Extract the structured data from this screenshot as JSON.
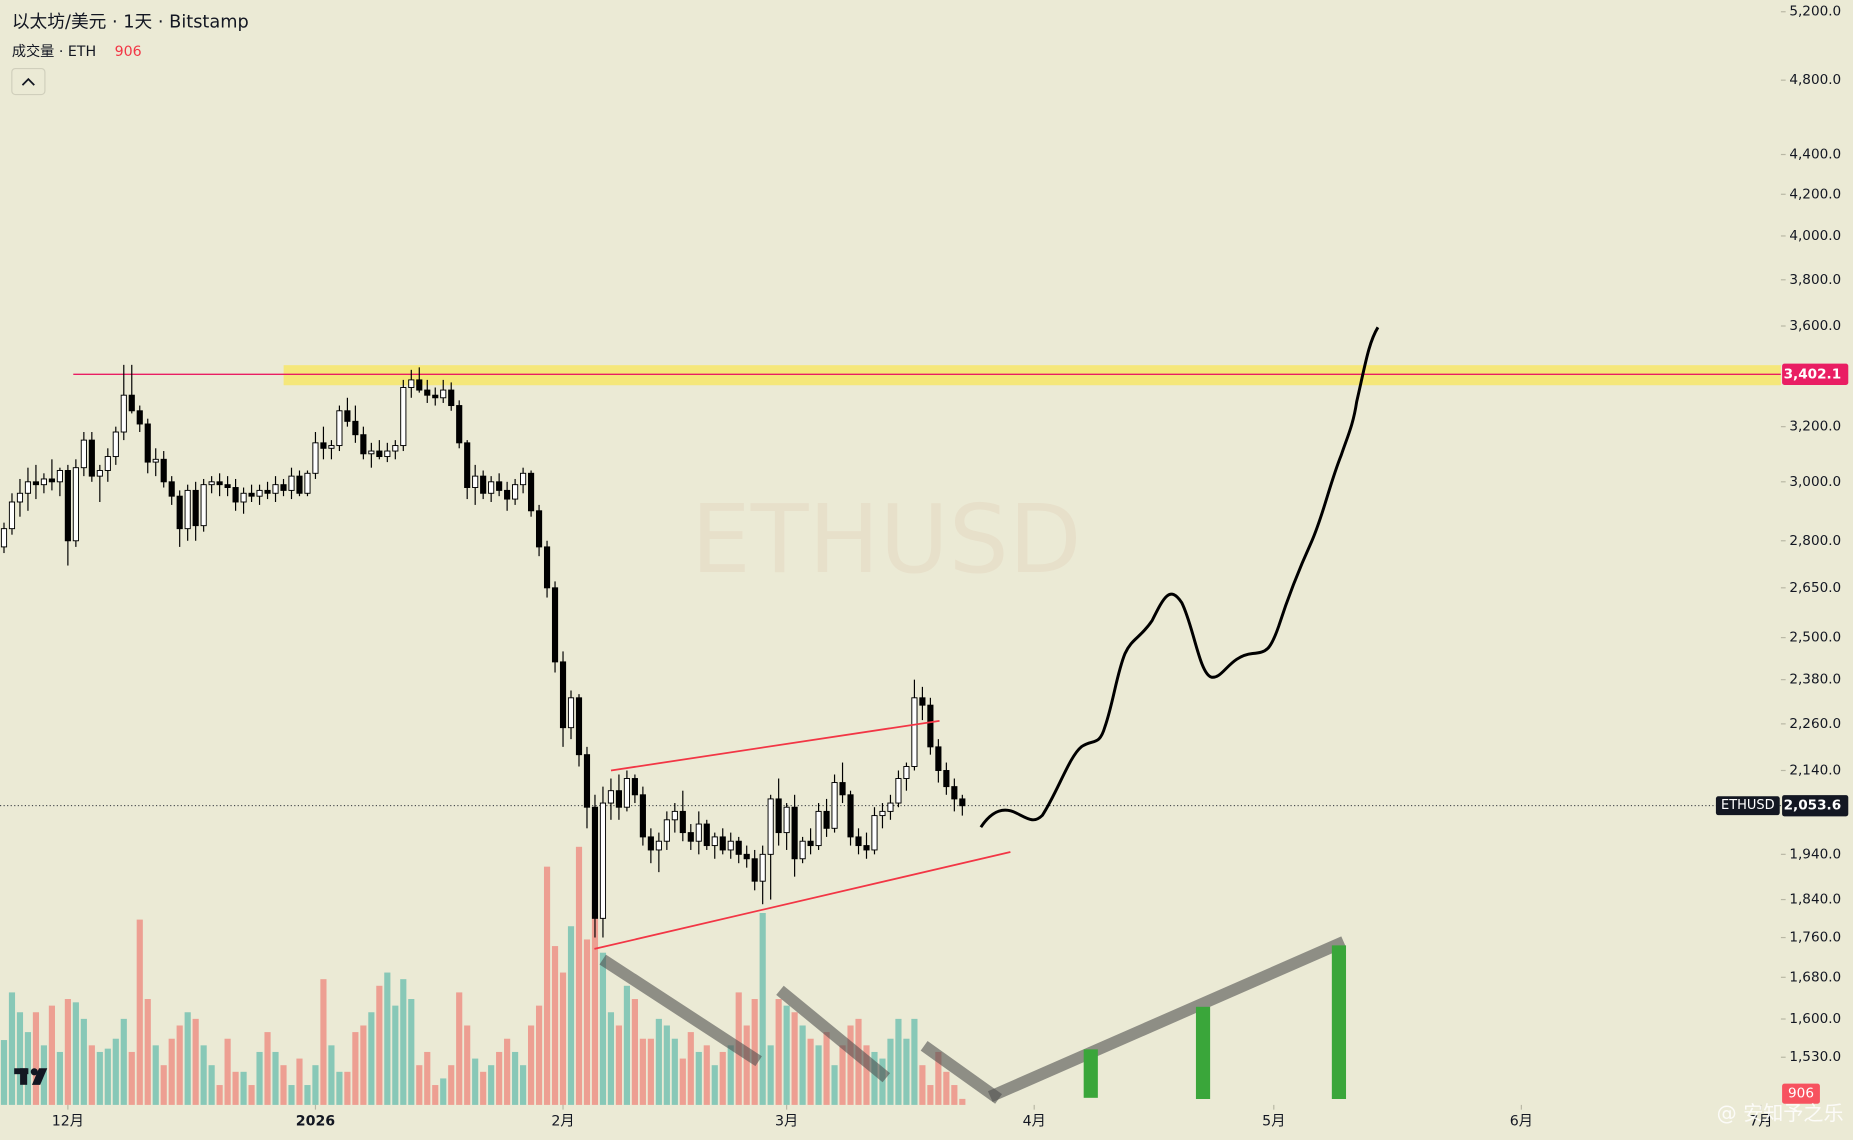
{
  "chart_data": {
    "type": "candlestick",
    "title": "以太坊/美元 · 1天 · Bitstamp",
    "volume_title": "成交量 · ETH",
    "watermark": "ETHUSD",
    "credit": "@ 安知予之乐",
    "log_scale": true,
    "up_color": "#ffffff",
    "down_color": "#000000",
    "wick_color": "#000000",
    "volume_up_color": "#26a69a",
    "volume_down_color": "#ef5350",
    "ylim": [
      1447,
      5272
    ],
    "yticks": [
      {
        "value": 5200,
        "label": "5,200.0"
      },
      {
        "value": 4800,
        "label": "4,800.0"
      },
      {
        "value": 4400,
        "label": "4,400.0"
      },
      {
        "value": 4200,
        "label": "4,200.0"
      },
      {
        "value": 4000,
        "label": "4,000.0"
      },
      {
        "value": 3800,
        "label": "3,800.0"
      },
      {
        "value": 3600,
        "label": "3,600.0"
      },
      {
        "value": 3200,
        "label": "3,200.0"
      },
      {
        "value": 3000,
        "label": "3,000.0"
      },
      {
        "value": 2800,
        "label": "2,800.0"
      },
      {
        "value": 2650,
        "label": "2,650.0"
      },
      {
        "value": 2500,
        "label": "2,500.0"
      },
      {
        "value": 2380,
        "label": "2,380.0"
      },
      {
        "value": 2260,
        "label": "2,260.0"
      },
      {
        "value": 2140,
        "label": "2,140.0"
      },
      {
        "value": 1940,
        "label": "1,940.0"
      },
      {
        "value": 1840,
        "label": "1,840.0"
      },
      {
        "value": 1760,
        "label": "1,760.0"
      },
      {
        "value": 1680,
        "label": "1,680.0"
      },
      {
        "value": 1600,
        "label": "1,600.0"
      },
      {
        "value": 1530,
        "label": "1,530.0"
      }
    ],
    "xlim": [
      -0.5,
      222.5
    ],
    "xticks": [
      {
        "value": 8,
        "label": "12月"
      },
      {
        "value": 39,
        "label": "2026"
      },
      {
        "value": 70,
        "label": "2月"
      },
      {
        "value": 98,
        "label": "3月"
      },
      {
        "value": 129,
        "label": "4月"
      },
      {
        "value": 159,
        "label": "5月"
      },
      {
        "value": 190,
        "label": "6月"
      },
      {
        "value": 220,
        "label": "7月"
      }
    ],
    "resistance": {
      "value": 3402.1,
      "label": "3,402.1",
      "color": "#e91e63"
    },
    "last_price": {
      "value": 2053.6,
      "label": "2,053.6",
      "symbol": "ETHUSD"
    },
    "volume_ylim": [
      0,
      50000
    ],
    "candles": [
      [
        2780,
        2860,
        2760,
        2840
      ],
      [
        2840,
        2960,
        2820,
        2930
      ],
      [
        2930,
        3010,
        2880,
        2960
      ],
      [
        2960,
        3050,
        2900,
        3000
      ],
      [
        3000,
        3060,
        2940,
        2990
      ],
      [
        2990,
        3030,
        2960,
        3010
      ],
      [
        3010,
        3080,
        2970,
        3000
      ],
      [
        3000,
        3050,
        2950,
        3040
      ],
      [
        3040,
        3060,
        2720,
        2800
      ],
      [
        2800,
        3080,
        2780,
        3050
      ],
      [
        3050,
        3180,
        3020,
        3150
      ],
      [
        3150,
        3180,
        3000,
        3020
      ],
      [
        3020,
        3060,
        2930,
        3040
      ],
      [
        3040,
        3120,
        3000,
        3090
      ],
      [
        3090,
        3200,
        3060,
        3180
      ],
      [
        3180,
        3440,
        3150,
        3320
      ],
      [
        3320,
        3440,
        3250,
        3260
      ],
      [
        3260,
        3280,
        3180,
        3210
      ],
      [
        3210,
        3230,
        3030,
        3070
      ],
      [
        3070,
        3120,
        3020,
        3080
      ],
      [
        3080,
        3110,
        2980,
        3000
      ],
      [
        3000,
        3020,
        2920,
        2950
      ],
      [
        2950,
        2970,
        2780,
        2840
      ],
      [
        2840,
        2990,
        2800,
        2970
      ],
      [
        2970,
        3000,
        2800,
        2850
      ],
      [
        2850,
        3010,
        2830,
        2990
      ],
      [
        2990,
        3020,
        2960,
        3000
      ],
      [
        3000,
        3030,
        2950,
        2990
      ],
      [
        2990,
        3020,
        2950,
        2980
      ],
      [
        2980,
        3010,
        2900,
        2930
      ],
      [
        2930,
        2980,
        2890,
        2960
      ],
      [
        2960,
        2990,
        2930,
        2950
      ],
      [
        2950,
        2990,
        2920,
        2970
      ],
      [
        2970,
        3000,
        2940,
        2960
      ],
      [
        2960,
        3020,
        2930,
        2990
      ],
      [
        2990,
        3010,
        2950,
        2970
      ],
      [
        2970,
        3050,
        2940,
        3020
      ],
      [
        3020,
        3040,
        2950,
        2960
      ],
      [
        2960,
        3040,
        2950,
        3030
      ],
      [
        3030,
        3180,
        3010,
        3140
      ],
      [
        3140,
        3200,
        3080,
        3120
      ],
      [
        3120,
        3150,
        3080,
        3130
      ],
      [
        3130,
        3280,
        3110,
        3260
      ],
      [
        3260,
        3310,
        3200,
        3220
      ],
      [
        3220,
        3280,
        3140,
        3170
      ],
      [
        3170,
        3200,
        3080,
        3100
      ],
      [
        3100,
        3140,
        3050,
        3110
      ],
      [
        3110,
        3150,
        3080,
        3090
      ],
      [
        3090,
        3140,
        3070,
        3110
      ],
      [
        3110,
        3150,
        3080,
        3130
      ],
      [
        3130,
        3380,
        3110,
        3350
      ],
      [
        3350,
        3420,
        3310,
        3380
      ],
      [
        3380,
        3430,
        3330,
        3340
      ],
      [
        3340,
        3380,
        3290,
        3320
      ],
      [
        3320,
        3350,
        3280,
        3310
      ],
      [
        3310,
        3380,
        3290,
        3340
      ],
      [
        3340,
        3370,
        3260,
        3280
      ],
      [
        3280,
        3300,
        3120,
        3140
      ],
      [
        3140,
        3150,
        2940,
        2980
      ],
      [
        2980,
        3060,
        2920,
        3020
      ],
      [
        3020,
        3040,
        2940,
        2960
      ],
      [
        2960,
        3020,
        2930,
        3000
      ],
      [
        3000,
        3030,
        2950,
        2970
      ],
      [
        2970,
        3000,
        2900,
        2940
      ],
      [
        2940,
        3010,
        2920,
        2990
      ],
      [
        2990,
        3050,
        2960,
        3030
      ],
      [
        3030,
        3040,
        2880,
        2900
      ],
      [
        2900,
        2920,
        2750,
        2780
      ],
      [
        2780,
        2800,
        2620,
        2650
      ],
      [
        2650,
        2670,
        2400,
        2430
      ],
      [
        2430,
        2460,
        2200,
        2250
      ],
      [
        2250,
        2350,
        2220,
        2330
      ],
      [
        2330,
        2340,
        2150,
        2180
      ],
      [
        2180,
        2200,
        2000,
        2050
      ],
      [
        2050,
        2080,
        1760,
        1800
      ],
      [
        1800,
        2100,
        1760,
        2060
      ],
      [
        2060,
        2120,
        2020,
        2090
      ],
      [
        2090,
        2130,
        2020,
        2050
      ],
      [
        2050,
        2140,
        2040,
        2120
      ],
      [
        2120,
        2130,
        2060,
        2080
      ],
      [
        2080,
        2100,
        1960,
        1980
      ],
      [
        1980,
        2000,
        1920,
        1950
      ],
      [
        1950,
        1990,
        1900,
        1970
      ],
      [
        1970,
        2040,
        1950,
        2020
      ],
      [
        2020,
        2060,
        1990,
        2040
      ],
      [
        2040,
        2090,
        1970,
        1990
      ],
      [
        1990,
        2010,
        1950,
        1970
      ],
      [
        1970,
        2040,
        1940,
        2010
      ],
      [
        2010,
        2020,
        1950,
        1960
      ],
      [
        1960,
        1990,
        1930,
        1980
      ],
      [
        1980,
        2000,
        1940,
        1950
      ],
      [
        1950,
        1990,
        1930,
        1970
      ],
      [
        1970,
        1980,
        1920,
        1940
      ],
      [
        1940,
        1960,
        1910,
        1930
      ],
      [
        1930,
        1950,
        1860,
        1880
      ],
      [
        1880,
        1960,
        1830,
        1940
      ],
      [
        1940,
        2080,
        1840,
        2070
      ],
      [
        2070,
        2120,
        1960,
        1990
      ],
      [
        1990,
        2060,
        1950,
        2050
      ],
      [
        2050,
        2080,
        1890,
        1930
      ],
      [
        1930,
        1980,
        1920,
        1970
      ],
      [
        1970,
        2000,
        1940,
        1960
      ],
      [
        1960,
        2060,
        1950,
        2040
      ],
      [
        2040,
        2070,
        1980,
        2000
      ],
      [
        2000,
        2130,
        1990,
        2110
      ],
      [
        2110,
        2160,
        2060,
        2080
      ],
      [
        2080,
        2090,
        1960,
        1980
      ],
      [
        1980,
        2000,
        1940,
        1960
      ],
      [
        1960,
        1990,
        1930,
        1950
      ],
      [
        1950,
        2050,
        1940,
        2030
      ],
      [
        2030,
        2060,
        2000,
        2040
      ],
      [
        2040,
        2080,
        2020,
        2060
      ],
      [
        2060,
        2140,
        2050,
        2120
      ],
      [
        2120,
        2160,
        2090,
        2150
      ],
      [
        2150,
        2380,
        2140,
        2330
      ],
      [
        2330,
        2360,
        2270,
        2310
      ],
      [
        2310,
        2330,
        2180,
        2200
      ],
      [
        2200,
        2220,
        2110,
        2140
      ],
      [
        2140,
        2160,
        2080,
        2100
      ],
      [
        2100,
        2120,
        2040,
        2070
      ],
      [
        2070,
        2080,
        2030,
        2053.6
      ]
    ],
    "volume": [
      9800,
      17000,
      14000,
      11000,
      14000,
      9000,
      15000,
      8000,
      16000,
      15500,
      13000,
      9000,
      8000,
      8500,
      10000,
      13000,
      8000,
      28000,
      16000,
      9000,
      6000,
      10000,
      12000,
      14000,
      13000,
      9000,
      6000,
      3000,
      10000,
      5000,
      5000,
      3000,
      8000,
      11000,
      8000,
      6000,
      3000,
      7000,
      3000,
      6000,
      19000,
      9000,
      5000,
      5000,
      11000,
      12000,
      14000,
      18000,
      20000,
      15000,
      19000,
      16000,
      6000,
      8000,
      3000,
      4000,
      6000,
      17000,
      12000,
      7000,
      5000,
      6000,
      8000,
      10000,
      8000,
      6000,
      12000,
      15000,
      36000,
      24000,
      20000,
      27000,
      39000,
      25000,
      31000,
      23000,
      14000,
      12000,
      18000,
      16000,
      10000,
      10000,
      13000,
      12000,
      10000,
      7000,
      11000,
      8000,
      9000,
      6000,
      8000,
      9000,
      17000,
      12000,
      16000,
      29000,
      9000,
      16000,
      15000,
      14000,
      12000,
      10000,
      9000,
      11000,
      6000,
      9000,
      12000,
      13000,
      9000,
      8000,
      7000,
      10000,
      13000,
      10000,
      13000,
      6000,
      3000,
      8000,
      5000,
      3000,
      906
    ]
  }
}
